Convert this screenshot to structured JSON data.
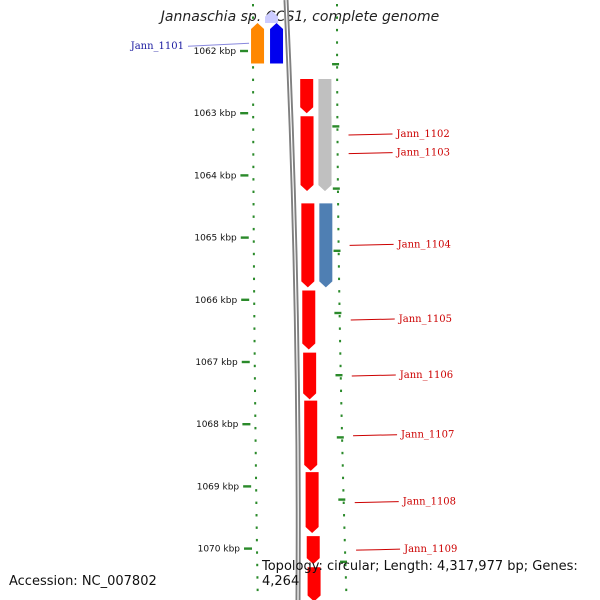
{
  "title": "Jannaschia sp. CCS1, complete genome",
  "accession_text": "Accession: NC_007802",
  "summary_text": "Topology: circular; Length: 4,317,977 bp; Genes: 4,264",
  "ruler": {
    "ticks": [
      "1062 kbp",
      "1063 kbp",
      "1064 kbp",
      "1065 kbp",
      "1066 kbp",
      "1067 kbp",
      "1068 kbp",
      "1069 kbp",
      "1070 kbp"
    ]
  },
  "colors": {
    "backbone": "#808080",
    "tick": "#2a8a2a",
    "forward_label": "#1a1aa0",
    "reverse_label": "#cc0000",
    "connector_blue": "#8888dd"
  },
  "genes": [
    {
      "label": "Jann_1101",
      "strand": "forward",
      "start_kbp": 1061.55,
      "end_kbp": 1062.2,
      "color": "#ff8800"
    },
    {
      "label": "",
      "strand": "forward",
      "start_kbp": 1061.55,
      "end_kbp": 1062.2,
      "color": "#0000ee"
    },
    {
      "label": "",
      "strand": "forward",
      "start_kbp": 1061.35,
      "end_kbp": 1061.55,
      "color": "#ccccff"
    },
    {
      "label": "",
      "strand": "reverse",
      "start_kbp": 1062.45,
      "end_kbp": 1063.0,
      "color": "#ff0000"
    },
    {
      "label": "",
      "strand": "reverse",
      "start_kbp": 1063.05,
      "end_kbp": 1064.25,
      "color": "#ff0000"
    },
    {
      "label": "Jann_1102",
      "strand": "reverse",
      "start_kbp": 1062.45,
      "end_kbp": 1064.25,
      "color": "#c0c0c0"
    },
    {
      "label": "Jann_1103",
      "strand": "reverse",
      "start_kbp": 1063.05,
      "end_kbp": 1064.25,
      "color": "#c0c0c0"
    },
    {
      "label": "",
      "strand": "reverse",
      "start_kbp": 1064.45,
      "end_kbp": 1065.8,
      "color": "#ff0000"
    },
    {
      "label": "Jann_1104",
      "strand": "reverse",
      "start_kbp": 1064.45,
      "end_kbp": 1065.8,
      "color": "#4f7fb3"
    },
    {
      "label": "Jann_1105",
      "strand": "reverse",
      "start_kbp": 1065.85,
      "end_kbp": 1066.8,
      "color": "#ff0000"
    },
    {
      "label": "Jann_1106",
      "strand": "reverse",
      "start_kbp": 1066.85,
      "end_kbp": 1067.6,
      "color": "#ff0000"
    },
    {
      "label": "Jann_1107",
      "strand": "reverse",
      "start_kbp": 1067.62,
      "end_kbp": 1068.75,
      "color": "#ff0000"
    },
    {
      "label": "Jann_1108",
      "strand": "reverse",
      "start_kbp": 1068.77,
      "end_kbp": 1069.75,
      "color": "#ff0000"
    },
    {
      "label": "Jann_1109",
      "strand": "reverse",
      "start_kbp": 1069.8,
      "end_kbp": 1070.25,
      "color": "#ff0000"
    },
    {
      "label": "",
      "strand": "reverse",
      "start_kbp": 1070.3,
      "end_kbp": 1070.85,
      "color": "#ff0000"
    }
  ]
}
